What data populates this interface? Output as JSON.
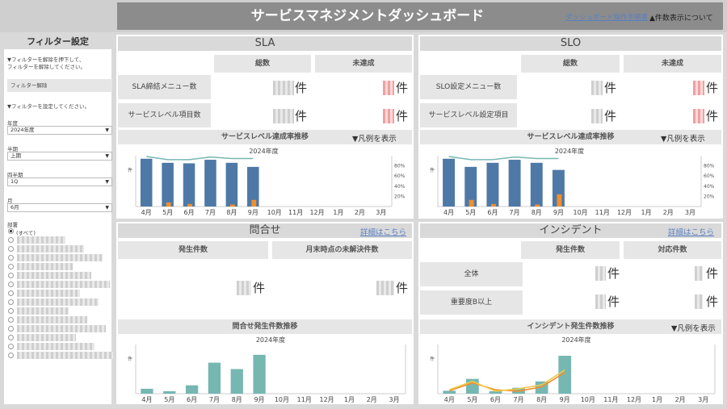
{
  "header": {
    "title": "サービスマネジメントダッシュボード",
    "manual_link": "ダッシュボード操作手順書",
    "notice": "▲件数表示について"
  },
  "filter": {
    "title": "フィルター設定",
    "reset_help": "▼フィルターを解除を押下して、\nフィルターを解除してください。",
    "reset_button": "フィルター解除",
    "set_help": "▼フィルターを設定してください。",
    "year": {
      "label": "年度",
      "value": "2024年度"
    },
    "half": {
      "label": "半期",
      "value": "上期"
    },
    "quarter": {
      "label": "四半期",
      "value": "1Q"
    },
    "month": {
      "label": "月",
      "value": "6月"
    },
    "dept": {
      "label": "部署",
      "all": "(すべて)"
    }
  },
  "unit": "件",
  "legend_toggle": "▼凡例を表示",
  "detail_link": "詳細はこちら",
  "months": [
    "4月",
    "5月",
    "6月",
    "7月",
    "8月",
    "9月",
    "10月",
    "11月",
    "12月",
    "1月",
    "2月",
    "3月"
  ],
  "year_label": "2024年度",
  "pct_ticks": [
    "80%",
    "60%",
    "40%",
    "20%"
  ],
  "count_tick": "件",
  "sla": {
    "title": "SLA",
    "col_total": "総数",
    "col_unmet": "未達成",
    "rows": [
      "SLA締結メニュー数",
      "サービスレベル項目数"
    ],
    "trend_title": "サービスレベル達成率推移"
  },
  "slo": {
    "title": "SLO",
    "col_total": "総数",
    "col_unmet": "未達成",
    "rows": [
      "SLO設定メニュー数",
      "サービスレベル設定項目"
    ],
    "trend_title": "サービスレベル達成率推移"
  },
  "inquiry": {
    "title": "問合せ",
    "col_count": "発生件数",
    "col_unresolved": "月末時点の未解決件数",
    "trend_title": "問合せ発生件数推移"
  },
  "incident": {
    "title": "インシデント",
    "col_count": "発生件数",
    "col_handled": "対応件数",
    "rows": [
      "全体",
      "重要度B以上"
    ],
    "trend_title": "インシデント発生件数推移"
  },
  "colors": {
    "blue": "#4e79a7",
    "orange": "#f28e2b",
    "teal": "#76b7b2",
    "yellow": "#edc948"
  },
  "chart_data": [
    {
      "id": "sla",
      "type": "bar",
      "categories": [
        "4月",
        "5月",
        "6月",
        "7月",
        "8月",
        "9月",
        "10月",
        "11月",
        "12月",
        "1月",
        "2月",
        "3月"
      ],
      "series": [
        {
          "values": [
            94,
            86,
            85,
            92,
            86,
            78,
            null,
            null,
            null,
            null,
            null,
            null
          ]
        },
        {
          "values": [
            0,
            8,
            5,
            0,
            4,
            13,
            null,
            null,
            null,
            null,
            null,
            null
          ]
        },
        {
          "values": [
            92,
            86,
            86,
            91,
            88,
            88,
            null,
            null,
            null,
            null,
            null,
            null
          ]
        }
      ]
    },
    {
      "id": "slo",
      "type": "bar",
      "categories": [
        "4月",
        "5月",
        "6月",
        "7月",
        "8月",
        "9月",
        "10月",
        "11月",
        "12月",
        "1月",
        "2月",
        "3月"
      ],
      "series": [
        {
          "values": [
            94,
            78,
            86,
            92,
            86,
            72,
            null,
            null,
            null,
            null,
            null,
            null
          ]
        },
        {
          "values": [
            0,
            13,
            5,
            0,
            4,
            24,
            null,
            null,
            null,
            null,
            null,
            null
          ]
        },
        {
          "values": [
            92,
            86,
            86,
            91,
            88,
            88,
            null,
            null,
            null,
            null,
            null,
            null
          ]
        }
      ]
    },
    {
      "id": "inquiry",
      "type": "bar",
      "categories": [
        "4月",
        "5月",
        "6月",
        "7月",
        "8月",
        "9月",
        "10月",
        "11月",
        "12月",
        "1月",
        "2月",
        "3月"
      ],
      "series": [
        {
          "values": [
            10,
            5,
            17,
            63,
            50,
            79,
            null,
            null,
            null,
            null,
            null,
            null
          ]
        }
      ]
    },
    {
      "id": "incident",
      "type": "bar",
      "categories": [
        "4月",
        "5月",
        "6月",
        "7月",
        "8月",
        "9月",
        "10月",
        "11月",
        "12月",
        "1月",
        "2月",
        "3月"
      ],
      "series": [
        {
          "values": [
            6,
            30,
            5,
            12,
            25,
            77,
            null,
            null,
            null,
            null,
            null,
            null
          ]
        },
        {
          "values": [
            6,
            22,
            8,
            5,
            14,
            43,
            null,
            null,
            null,
            null,
            null,
            null
          ]
        },
        {
          "values": [
            8,
            25,
            5,
            10,
            18,
            48,
            null,
            null,
            null,
            null,
            null,
            null
          ]
        }
      ]
    }
  ]
}
